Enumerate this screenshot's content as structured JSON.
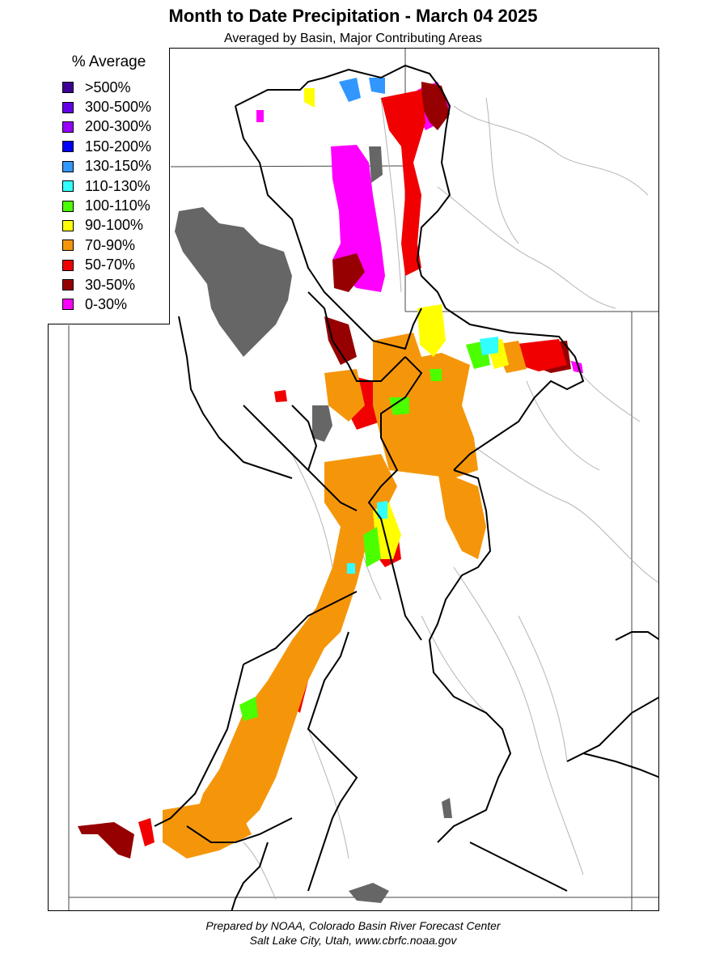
{
  "title": "Month to Date Precipitation - March 04 2025",
  "subtitle": "Averaged by Basin, Major Contributing Areas",
  "legend": {
    "title": "% Average",
    "items": [
      {
        "label": ">500%",
        "color": "#3d0096"
      },
      {
        "label": "300-500%",
        "color": "#6400e6"
      },
      {
        "label": "200-300%",
        "color": "#9600ff"
      },
      {
        "label": "150-200%",
        "color": "#0000ff"
      },
      {
        "label": "130-150%",
        "color": "#3296ff"
      },
      {
        "label": "110-130%",
        "color": "#32ffff"
      },
      {
        "label": "100-110%",
        "color": "#4bff00"
      },
      {
        "label": "90-100%",
        "color": "#ffff00"
      },
      {
        "label": "70-90%",
        "color": "#f5960a"
      },
      {
        "label": "50-70%",
        "color": "#f00000"
      },
      {
        "label": "30-50%",
        "color": "#960000"
      },
      {
        "label": "0-30%",
        "color": "#ff00ff"
      }
    ]
  },
  "colors": {
    "lake": "#666666",
    "state_border": "#000000",
    "basin_border": "#000000",
    "river": "#b4b4b4"
  },
  "credit": {
    "line1": "Prepared by NOAA, Colorado Basin River Forecast Center",
    "line2": "Salt Lake City, Utah, www.cbrfc.noaa.gov"
  }
}
